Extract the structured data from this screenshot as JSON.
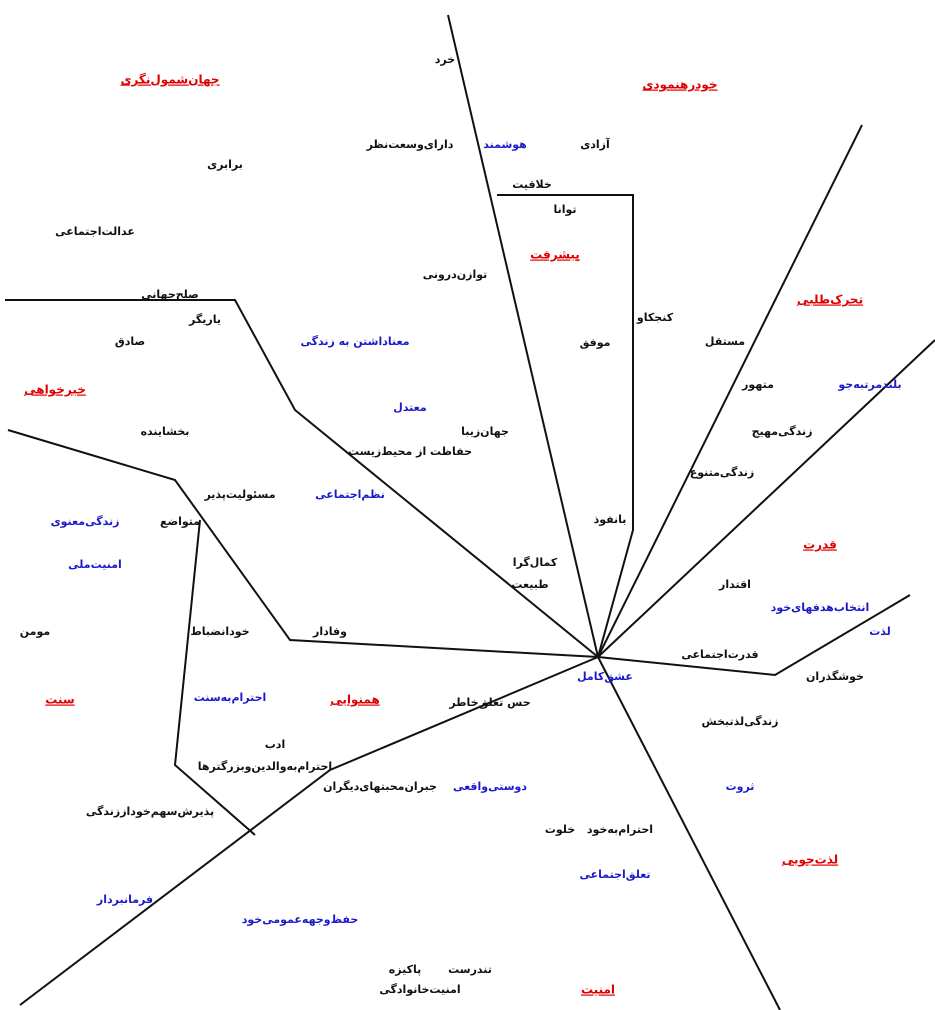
{
  "regions": [
    {
      "label": "جهان‌شمول‌نگری"
    },
    {
      "label": "خودرهنمودی"
    },
    {
      "label": "پیشرفت"
    },
    {
      "label": "تحرک‌طلبی"
    },
    {
      "label": "خیرخواهی"
    },
    {
      "label": "قدرت"
    },
    {
      "label": "سنت"
    },
    {
      "label": "همنوایی"
    },
    {
      "label": "لذت‌جویی"
    },
    {
      "label": "امنیت"
    }
  ],
  "values": [
    {
      "label": "خرد"
    },
    {
      "label": "آزادی"
    },
    {
      "label": "هوشمند"
    },
    {
      "label": "دارای‌وسعت‌نظر"
    },
    {
      "label": "خلاقیت"
    },
    {
      "label": "برابری"
    },
    {
      "label": "توانا"
    },
    {
      "label": "عدالت‌اجتماعی"
    },
    {
      "label": "توازن‌درونی"
    },
    {
      "label": "صلح‌جهانی"
    },
    {
      "label": "یاریگر"
    },
    {
      "label": "معنا‌داشتن به زندگی"
    },
    {
      "label": "کنجکاو"
    },
    {
      "label": "مستقل"
    },
    {
      "label": "موفق"
    },
    {
      "label": "صادق"
    },
    {
      "label": "متهور"
    },
    {
      "label": "بلندمرتبه‌جو"
    },
    {
      "label": "معتدل"
    },
    {
      "label": "بخشاینده"
    },
    {
      "label": "جهان‌زیبا"
    },
    {
      "label": "زندگی‌مهیج"
    },
    {
      "label": "حفاظت از محیط‌زیست"
    },
    {
      "label": "زندگی‌متنوع"
    },
    {
      "label": "نظم‌اجتماعی"
    },
    {
      "label": "مسئولیت‌پذیر"
    },
    {
      "label": "بانفوذ"
    },
    {
      "label": "متواضع"
    },
    {
      "label": "زندگی‌معنوی"
    },
    {
      "label": "کمال‌گرا"
    },
    {
      "label": "امنیت‌ملی"
    },
    {
      "label": "طبیعت"
    },
    {
      "label": "اقتدار"
    },
    {
      "label": "انتخاب‌هدفهای‌خود"
    },
    {
      "label": "مومن"
    },
    {
      "label": "لذت"
    },
    {
      "label": "وفادار"
    },
    {
      "label": "خودانضباط"
    },
    {
      "label": "قدرت‌اجتماعی"
    },
    {
      "label": "عشق‌کامل"
    },
    {
      "label": "خوشگذران"
    },
    {
      "label": "حس تعلق‌خاطر"
    },
    {
      "label": "احترام‌به‌سنت"
    },
    {
      "label": "زندگی‌لذتبخش"
    },
    {
      "label": "ادب"
    },
    {
      "label": "احترام‌به‌والدین‌وبزرگترها"
    },
    {
      "label": "جبران‌محبتهای‌دیگران"
    },
    {
      "label": "دوستی‌واقعی"
    },
    {
      "label": "ثروت"
    },
    {
      "label": "پذیرش‌سهم‌خود‌از‌زندگی"
    },
    {
      "label": "احترام‌به‌خود"
    },
    {
      "label": "خلوت"
    },
    {
      "label": "تعلق‌اجتماعی"
    },
    {
      "label": "فرمانبردار"
    },
    {
      "label": "حفظ‌وجهه‌عمومی‌خود"
    },
    {
      "label": "تندرست"
    },
    {
      "label": "پاکیزه"
    },
    {
      "label": "امنیت‌خانوادگی"
    }
  ]
}
